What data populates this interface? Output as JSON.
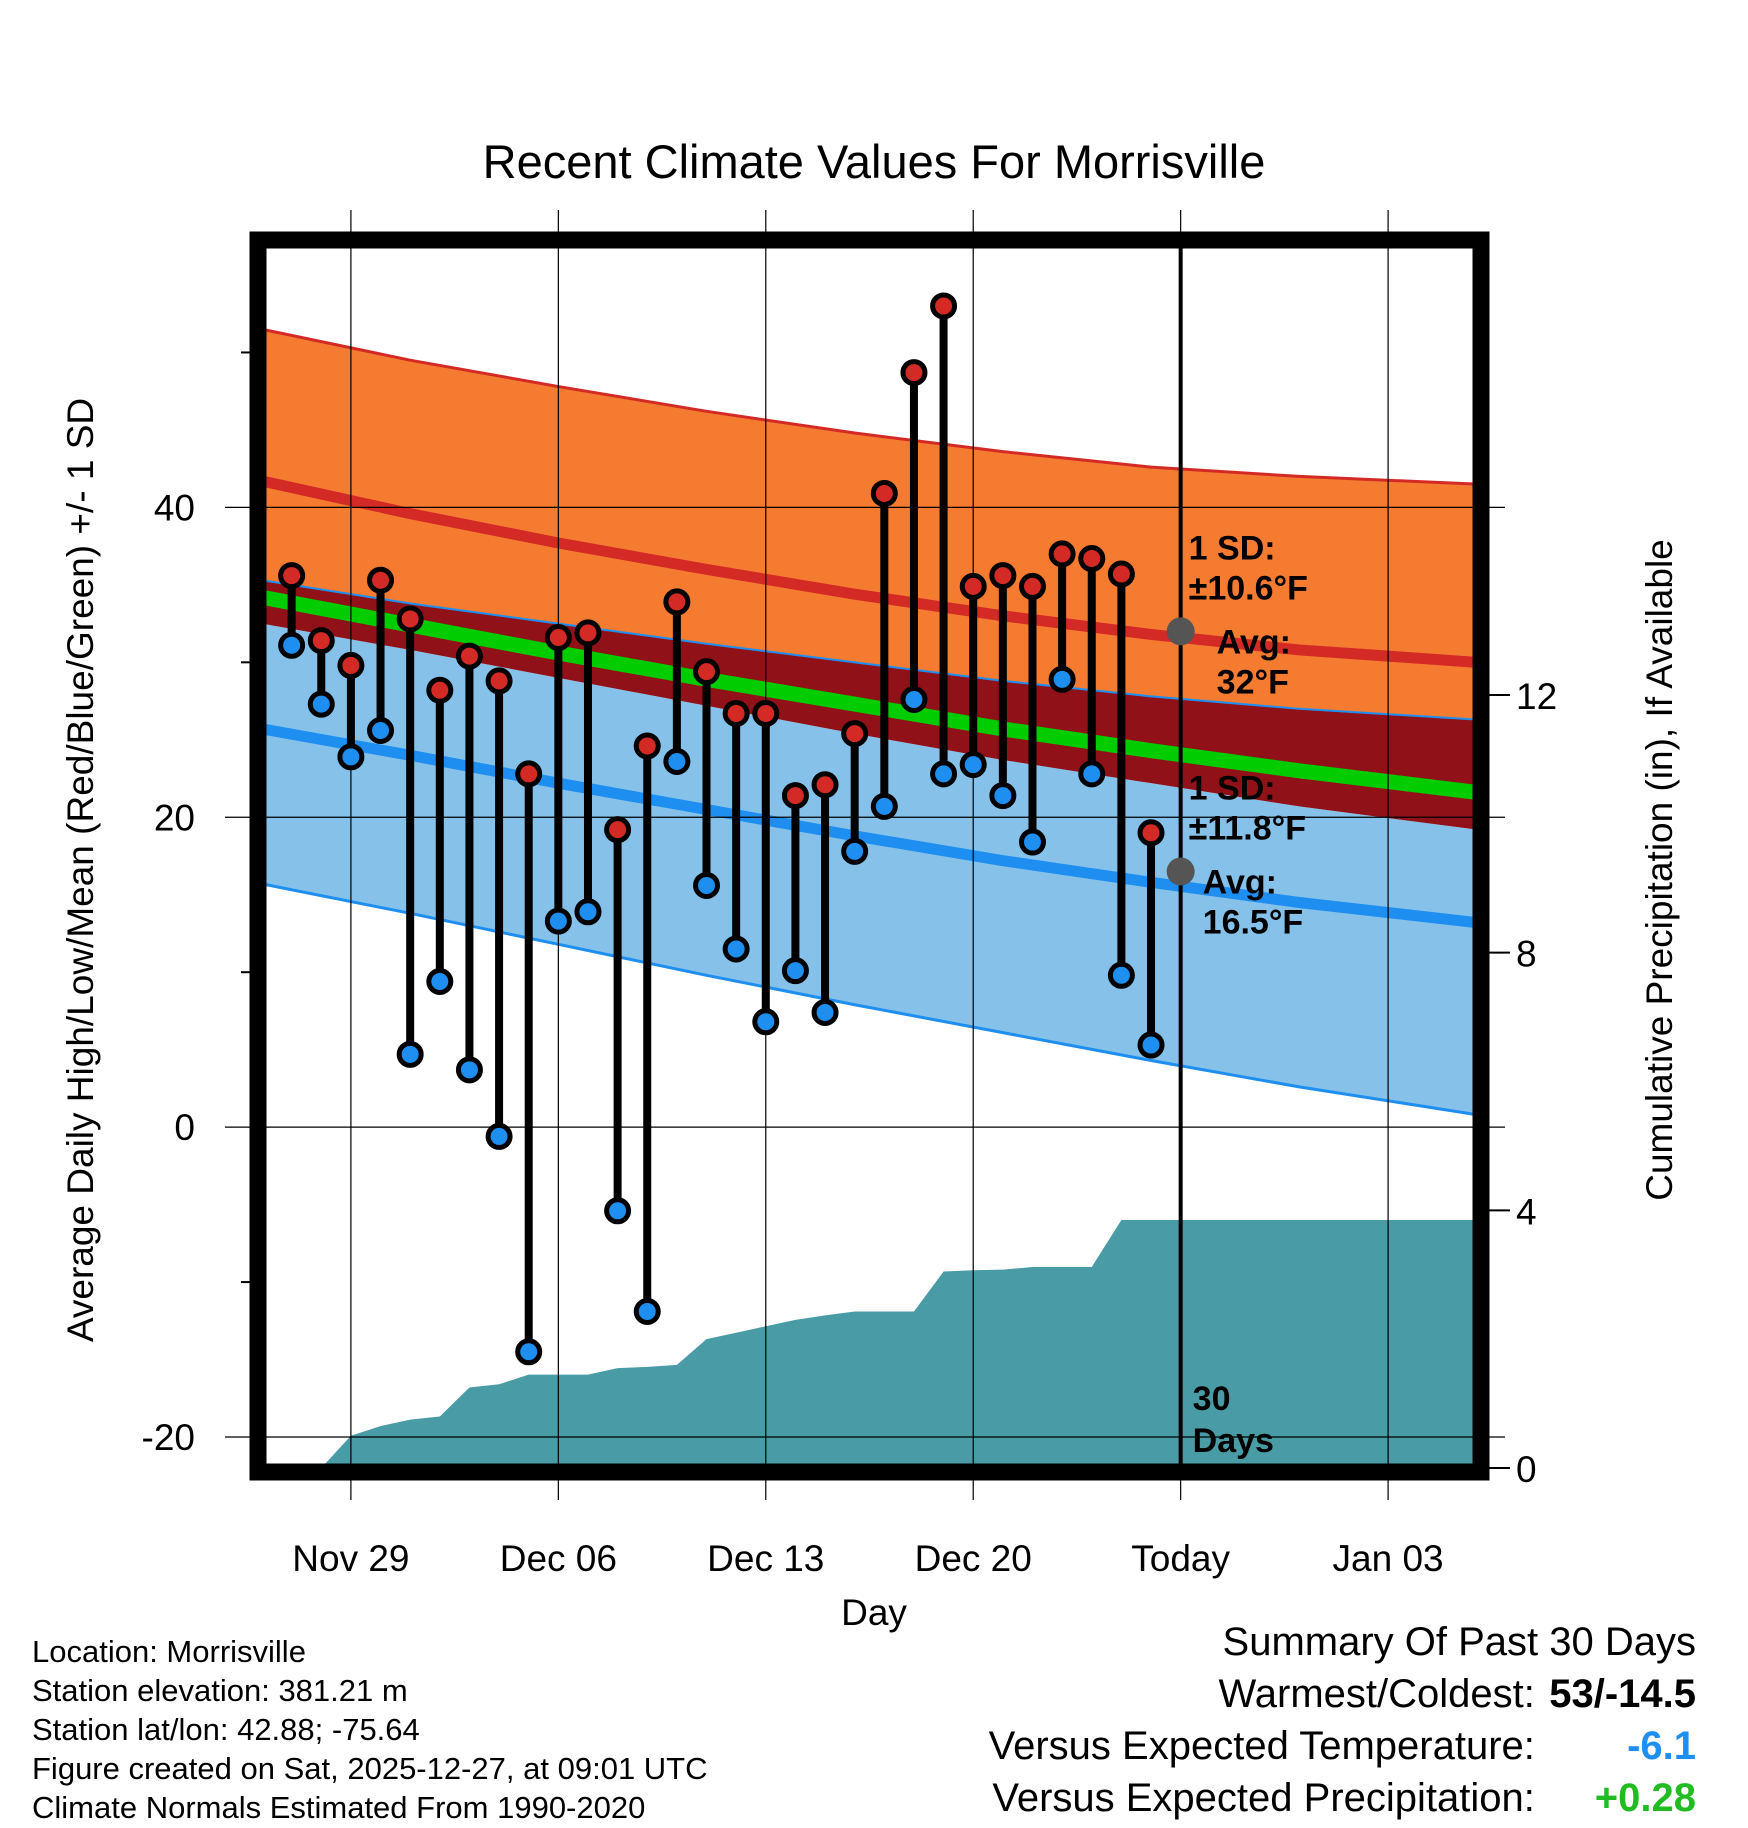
{
  "chart_data": {
    "type": "line",
    "title": "Recent Climate Values For Morrisville",
    "xlabel": "Day",
    "ylabel_left": "Average Daily High/Low/Mean (Red/Blue/Green) +/- 1 SD",
    "ylabel_right": "Cumulative Precipitation (in), If Available",
    "ylim_left": [
      -22,
      57
    ],
    "ylim_right": [
      0,
      19
    ],
    "x_start_day": 0,
    "x_end_day": 41,
    "today_day": 31,
    "x_tick_days": [
      3,
      10,
      17,
      24,
      31,
      38
    ],
    "x_tick_labels": [
      "Nov 29",
      "Dec 06",
      "Dec 13",
      "Dec 20",
      "Today",
      "Jan 03"
    ],
    "y_ticks_left": [
      -20,
      0,
      20,
      40
    ],
    "y_ticks_left_labels": [
      "-20",
      "0",
      "20",
      "40"
    ],
    "y_minor_ticks_left": [
      -10,
      10,
      30,
      50
    ],
    "y_ticks_right": [
      0,
      4,
      8,
      12
    ],
    "y_ticks_right_labels": [
      "0",
      "4",
      "8",
      "12"
    ],
    "normals": {
      "days": [
        0,
        5,
        10,
        15,
        20,
        25,
        30,
        35,
        41
      ],
      "high_mean": [
        41.7,
        39.6,
        37.7,
        36.0,
        34.4,
        33.0,
        31.8,
        30.8,
        30.0
      ],
      "high_upper": [
        51.5,
        49.5,
        47.8,
        46.2,
        44.8,
        43.6,
        42.6,
        42.0,
        41.5
      ],
      "high_lower": [
        35.3,
        33.8,
        32.5,
        31.2,
        30.0,
        28.8,
        27.8,
        27.0,
        26.3
      ],
      "mean": [
        34.2,
        32.4,
        30.6,
        28.9,
        27.3,
        25.7,
        24.3,
        23.0,
        21.6
      ],
      "low_mean": [
        25.7,
        24.0,
        22.2,
        20.5,
        18.8,
        17.2,
        15.8,
        14.5,
        13.2
      ],
      "low_lower": [
        15.7,
        13.8,
        11.8,
        9.8,
        7.9,
        6.1,
        4.3,
        2.6,
        0.8
      ],
      "low_upper": [
        32.5,
        30.8,
        29.0,
        27.2,
        25.4,
        23.7,
        22.2,
        20.7,
        19.2
      ]
    },
    "daily": {
      "days": [
        1,
        2,
        3,
        4,
        5,
        6,
        7,
        8,
        9,
        10,
        11,
        12,
        13,
        14,
        15,
        16,
        17,
        18,
        19,
        20,
        21,
        22,
        23,
        24,
        25,
        26,
        27,
        28,
        29,
        30
      ],
      "highs": [
        35.6,
        31.4,
        29.8,
        35.3,
        32.8,
        28.2,
        30.4,
        28.8,
        22.8,
        31.6,
        31.9,
        19.2,
        24.6,
        33.9,
        29.4,
        26.7,
        26.7,
        21.4,
        22.1,
        25.4,
        40.9,
        48.7,
        53.0,
        34.9,
        35.6,
        34.9,
        37.0,
        36.7,
        35.7,
        19.0
      ],
      "lows": [
        31.1,
        27.3,
        23.9,
        25.6,
        4.7,
        9.4,
        3.7,
        -0.6,
        -14.5,
        13.3,
        13.9,
        -5.4,
        -11.9,
        23.6,
        15.6,
        11.5,
        6.8,
        10.1,
        7.4,
        17.8,
        20.7,
        27.6,
        22.8,
        23.4,
        21.4,
        18.4,
        28.9,
        22.8,
        9.8,
        5.3
      ]
    },
    "precip": {
      "days": [
        1,
        2,
        3,
        4,
        5,
        6,
        7,
        8,
        9,
        10,
        11,
        12,
        13,
        14,
        15,
        16,
        17,
        18,
        19,
        20,
        21,
        22,
        23,
        24,
        25,
        26,
        27,
        28,
        29,
        30,
        31,
        35,
        41
      ],
      "values": [
        0.0,
        0.0,
        0.5,
        0.65,
        0.75,
        0.8,
        1.25,
        1.3,
        1.45,
        1.45,
        1.45,
        1.55,
        1.57,
        1.6,
        2.0,
        2.1,
        2.2,
        2.3,
        2.37,
        2.43,
        2.43,
        2.43,
        3.05,
        3.07,
        3.08,
        3.12,
        3.12,
        3.12,
        3.85,
        3.85,
        3.85,
        3.85,
        3.85
      ]
    },
    "annotations": {
      "high_sd_line1": "1 SD:",
      "high_sd_line2": "±10.6°F",
      "high_avg_line1": "Avg:",
      "high_avg_line2": "32°F",
      "high_avg_value": 32,
      "low_sd_line1": "1 SD:",
      "low_sd_line2": "±11.8°F",
      "low_avg_line1": "Avg:",
      "low_avg_line2": "16.5°F",
      "low_avg_value": 16.5,
      "days_line1": "30",
      "days_line2": "Days"
    },
    "colors": {
      "high_band": "#f47b30",
      "high_line": "#d42a26",
      "mean_band": "#901117",
      "mean_line": "#00cc00",
      "low_band": "#85c1e9",
      "low_line": "#1e8ff0",
      "precip_fill": "#499ba5",
      "high_marker": "#d42a26",
      "low_marker": "#1e8ff0",
      "stick": "#000000",
      "annotation": "#555555"
    }
  },
  "info": {
    "location": "Location: Morrisville",
    "elevation": "Station elevation: 381.21 m",
    "latlon": "Station lat/lon: 42.88; -75.64",
    "created": "Figure created on Sat, 2025-12-27, at 09:01 UTC",
    "normals": "Climate Normals Estimated From 1990-2020"
  },
  "summary": {
    "title": "Summary Of Past 30 Days",
    "warmest_label": "Warmest/Coldest:",
    "warmest_value": "53/-14.5",
    "temp_label": "Versus Expected Temperature:",
    "temp_value": "-6.1",
    "temp_color": "#1e8ff0",
    "precip_label": "Versus Expected Precipitation:",
    "precip_value": "+0.28",
    "precip_color": "#22bb22"
  }
}
